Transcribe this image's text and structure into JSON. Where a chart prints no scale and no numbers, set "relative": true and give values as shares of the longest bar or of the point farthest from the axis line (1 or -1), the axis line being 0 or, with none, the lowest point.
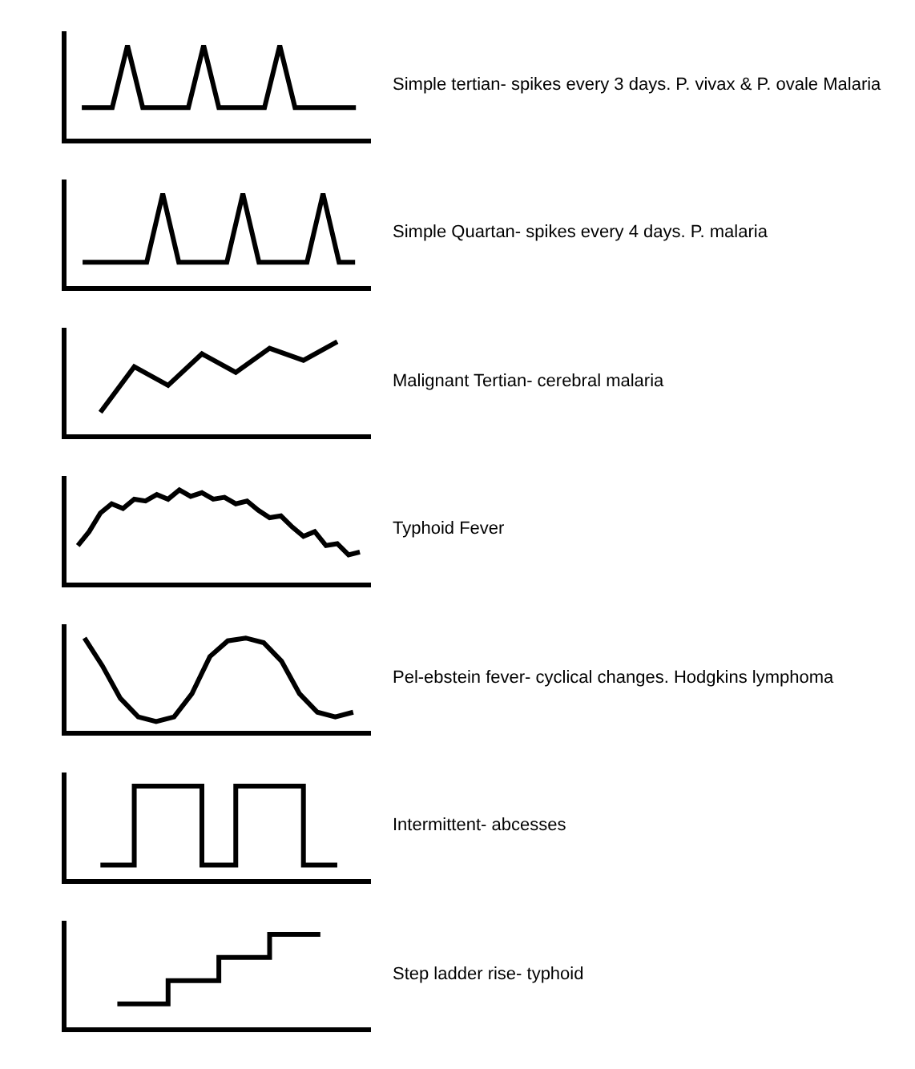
{
  "chart_data": [
    {
      "type": "line",
      "relative": true,
      "color": "#000000",
      "marker": "none",
      "categories": [
        null,
        null,
        null,
        null,
        null,
        null,
        null,
        null,
        null,
        null,
        null,
        null,
        null,
        null,
        null,
        null,
        null,
        null,
        null
      ],
      "values": [
        0.33,
        0.33,
        0.33,
        1,
        0.33,
        0.33,
        0.33,
        0.33,
        1,
        0.33,
        0.33,
        0.33,
        0.33,
        1,
        0.33,
        0.33,
        0.33,
        0.33,
        0.33
      ],
      "annotations": [
        "Simple tertian- spikes every 3 days. P. vivax & P. ovale Malaria"
      ]
    },
    {
      "type": "line",
      "relative": true,
      "color": "#000000",
      "marker": "none",
      "categories": [
        null,
        null,
        null,
        null,
        null,
        null,
        null,
        null,
        null,
        null,
        null,
        null,
        null,
        null,
        null,
        null,
        null,
        null
      ],
      "values": [
        0.26,
        0.26,
        0.26,
        0.26,
        0.26,
        1,
        0.26,
        0.26,
        0.26,
        0.26,
        1,
        0.26,
        0.26,
        0.26,
        0.26,
        1,
        0.26,
        0.26
      ],
      "annotations": [
        "Simple Quartan- spikes every 4 days. P. malaria"
      ]
    },
    {
      "type": "line",
      "relative": true,
      "color": "#000000",
      "marker": "none",
      "categories": [
        null,
        null,
        null,
        null,
        null,
        null,
        null,
        null
      ],
      "values": [
        0.24,
        0.73,
        0.53,
        0.87,
        0.67,
        0.93,
        0.8,
        1
      ],
      "annotations": [
        "Malignant Tertian- cerebral malaria"
      ]
    },
    {
      "type": "line",
      "relative": true,
      "color": "#000000",
      "marker": "none",
      "categories": [
        null,
        null,
        null,
        null,
        null,
        null,
        null,
        null,
        null,
        null,
        null,
        null,
        null,
        null,
        null,
        null,
        null,
        null,
        null,
        null,
        null,
        null,
        null,
        null,
        null,
        null
      ],
      "values": [
        0.4,
        0.55,
        0.75,
        0.85,
        0.8,
        0.9,
        0.88,
        0.95,
        0.9,
        1,
        0.93,
        0.97,
        0.9,
        0.92,
        0.85,
        0.88,
        0.78,
        0.7,
        0.72,
        0.6,
        0.5,
        0.55,
        0.4,
        0.42,
        0.3,
        0.33
      ],
      "annotations": [
        "Typhoid Fever"
      ]
    },
    {
      "type": "line",
      "relative": true,
      "color": "#000000",
      "marker": "none",
      "categories": [
        null,
        null,
        null,
        null,
        null,
        null,
        null,
        null,
        null,
        null,
        null,
        null,
        null,
        null,
        null,
        null
      ],
      "values": [
        1,
        0.7,
        0.35,
        0.15,
        0.1,
        0.15,
        0.4,
        0.8,
        0.97,
        1,
        0.95,
        0.75,
        0.4,
        0.2,
        0.15,
        0.2
      ],
      "annotations": [
        "Pel-ebstein fever- cyclical changes. Hodgkins lymphoma"
      ]
    },
    {
      "type": "step",
      "relative": true,
      "color": "#000000",
      "marker": "none",
      "categories": [
        null,
        null,
        null,
        null,
        null,
        null,
        null,
        null
      ],
      "values": [
        0.15,
        1,
        1,
        0.15,
        1,
        1,
        0.15,
        0.15
      ],
      "annotations": [
        "Intermittent- abcesses"
      ]
    },
    {
      "type": "step",
      "relative": true,
      "color": "#000000",
      "marker": "none",
      "categories": [
        null,
        null,
        null,
        null,
        null
      ],
      "values": [
        0.25,
        0.5,
        0.75,
        1,
        1
      ],
      "annotations": [
        "Step ladder rise- typhoid"
      ]
    }
  ]
}
